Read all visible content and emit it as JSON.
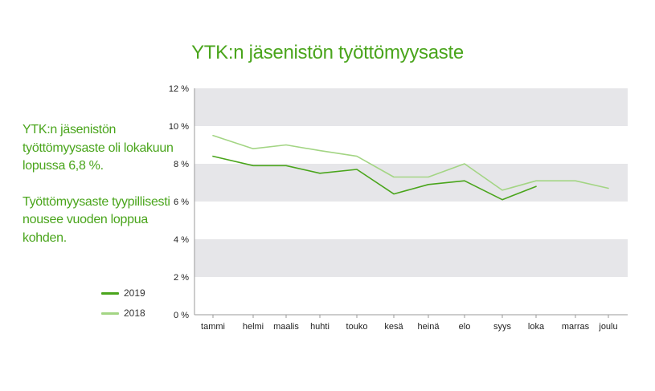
{
  "title": "YTK:n jäsenistön työttömyysaste",
  "side_text": {
    "p1": "YTK:n jäsenistön työttömyysaste oli lokakuun lopussa 6,8 %.",
    "p2": "Työttömyysaste tyypillisesti nousee vuoden loppua kohden."
  },
  "colors": {
    "series_2019": "#4aa51c",
    "series_2018": "#a3d584",
    "band": "#e6e6e9",
    "title": "#4aa51c"
  },
  "chart_data": {
    "type": "line",
    "categories": [
      "tammi",
      "helmi",
      "maalis",
      "huhti",
      "touko",
      "kesä",
      "heinä",
      "elo",
      "syys",
      "loka",
      "marras",
      "joulu"
    ],
    "series": [
      {
        "name": "2019",
        "values": [
          8.4,
          7.9,
          7.9,
          7.5,
          7.7,
          6.4,
          6.9,
          7.1,
          6.1,
          6.8,
          null,
          null
        ]
      },
      {
        "name": "2018",
        "values": [
          9.5,
          8.8,
          9.0,
          8.7,
          8.4,
          7.3,
          7.3,
          8.0,
          6.6,
          7.1,
          7.1,
          6.7
        ]
      }
    ],
    "y_ticks": [
      "0 %",
      "2 %",
      "4 %",
      "6 %",
      "8 %",
      "10 %",
      "12 %"
    ],
    "ylim": [
      0,
      12
    ],
    "grid": "alternating bands",
    "legend": "left"
  }
}
